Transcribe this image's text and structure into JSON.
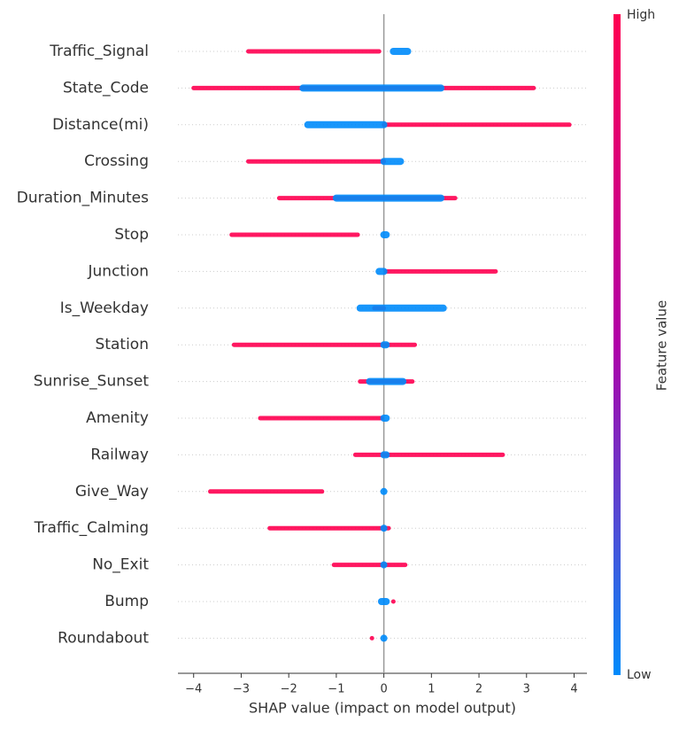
{
  "chart_data": {
    "type": "beeswarm",
    "xlabel": "SHAP value (impact on model output)",
    "colorbar_label": "Feature value",
    "categories": [
      "Traffic_Signal",
      "State_Code",
      "Distance(mi)",
      "Crossing",
      "Duration_Minutes",
      "Stop",
      "Junction",
      "Is_Weekday",
      "Station",
      "Sunrise_Sunset",
      "Amenity",
      "Railway",
      "Give_Way",
      "Traffic_Calming",
      "No_Exit",
      "Bump",
      "Roundabout"
    ],
    "series": [
      {
        "name": "High",
        "color": "#ff0051",
        "ranges": [
          [
            -2.85,
            -0.1
          ],
          [
            -4.0,
            3.15
          ],
          [
            0.0,
            3.9
          ],
          [
            -2.85,
            0.0
          ],
          [
            -2.2,
            1.5
          ],
          [
            -3.2,
            -0.55
          ],
          [
            0.05,
            2.35
          ],
          [
            -0.2,
            0.0
          ],
          [
            -3.15,
            0.65
          ],
          [
            -0.5,
            0.6
          ],
          [
            -2.6,
            -0.05
          ],
          [
            -0.6,
            2.5
          ],
          [
            -3.65,
            -1.3
          ],
          [
            -2.4,
            0.1
          ],
          [
            -1.05,
            0.45
          ],
          [
            0.2,
            0.2
          ],
          [
            -0.25,
            -0.25
          ]
        ]
      },
      {
        "name": "Low",
        "color": "#008bfb",
        "ranges": [
          [
            0.2,
            0.5
          ],
          [
            -1.7,
            1.2
          ],
          [
            -1.6,
            0.0
          ],
          [
            0.0,
            0.35
          ],
          [
            -1.0,
            1.2
          ],
          [
            0.0,
            0.05
          ],
          [
            -0.1,
            0.0
          ],
          [
            -0.5,
            1.25
          ],
          [
            0.0,
            0.05
          ],
          [
            -0.3,
            0.4
          ],
          [
            0.0,
            0.05
          ],
          [
            0.0,
            0.05
          ],
          [
            0.0,
            0.0
          ],
          [
            0.0,
            0.0
          ],
          [
            0.0,
            0.0
          ],
          [
            -0.05,
            0.05
          ],
          [
            0.0,
            0.0
          ]
        ]
      }
    ],
    "xlim": [
      -4.33,
      4.27
    ],
    "xticks": [
      {
        "value": -4,
        "label": "−4"
      },
      {
        "value": -3,
        "label": "−3"
      },
      {
        "value": -2,
        "label": "−2"
      },
      {
        "value": -1,
        "label": "−1"
      },
      0,
      1,
      2,
      3,
      4
    ]
  }
}
